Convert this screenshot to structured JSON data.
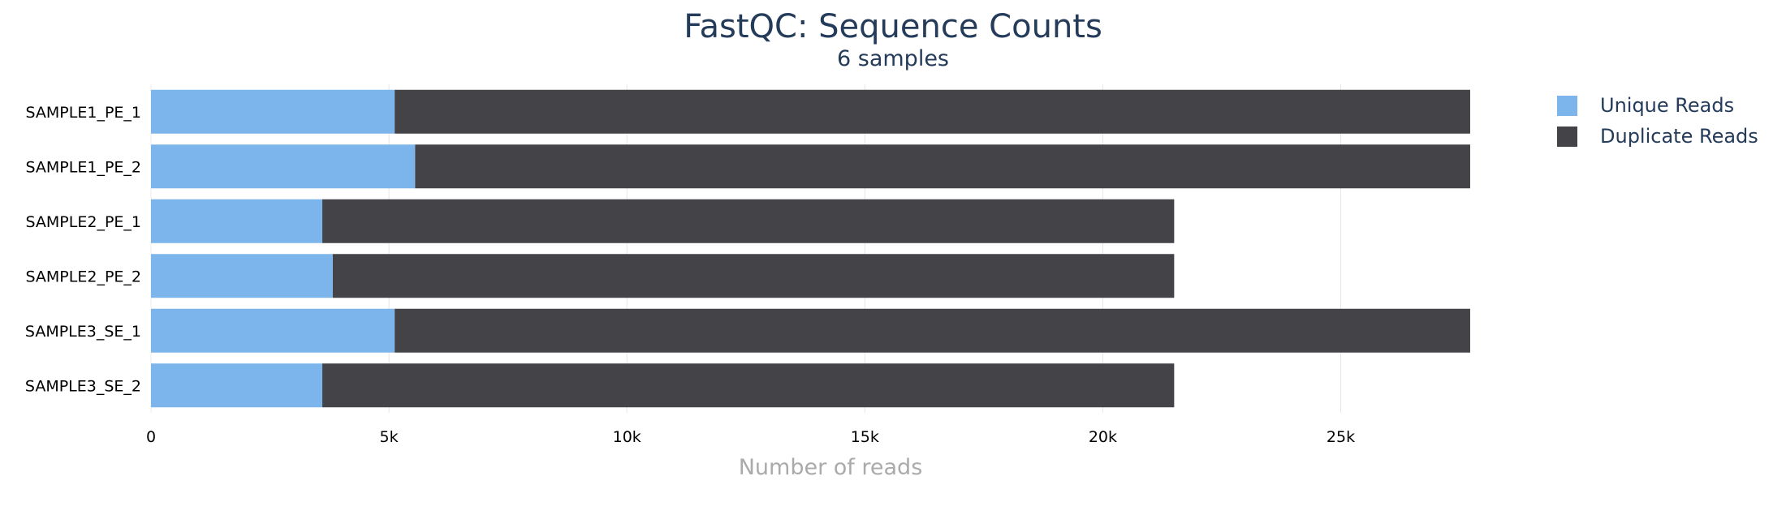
{
  "title": "FastQC: Sequence Counts",
  "subtitle": "6 samples",
  "legend": [
    {
      "label": "Unique Reads",
      "color": "#7cb5ec"
    },
    {
      "label": "Duplicate Reads",
      "color": "#434348"
    }
  ],
  "chart_data": {
    "type": "bar",
    "orientation": "horizontal",
    "stacked": true,
    "categories": [
      "SAMPLE1_PE_1",
      "SAMPLE1_PE_2",
      "SAMPLE2_PE_1",
      "SAMPLE2_PE_2",
      "SAMPLE3_SE_1",
      "SAMPLE3_SE_2"
    ],
    "series": [
      {
        "name": "Unique Reads",
        "color": "#7cb5ec",
        "values": [
          5120,
          5550,
          3600,
          3820,
          5120,
          3600
        ]
      },
      {
        "name": "Duplicate Reads",
        "color": "#434348",
        "values": [
          22600,
          22170,
          17900,
          17680,
          22600,
          17900
        ]
      }
    ],
    "xlabel": "Number of reads",
    "ylabel": "",
    "xlim": [
      0,
      29000
    ],
    "xticks": [
      0,
      5000,
      10000,
      15000,
      20000,
      25000
    ],
    "xtick_labels": [
      "0",
      "5k",
      "10k",
      "15k",
      "20k",
      "25k"
    ],
    "grid": true,
    "legend_position": "top-right"
  }
}
